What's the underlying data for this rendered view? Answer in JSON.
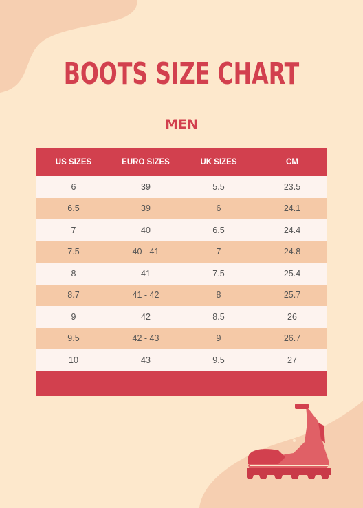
{
  "title": "BOOTS SIZE CHART",
  "subtitle": "MEN",
  "table": {
    "headers": [
      "US SIZES",
      "EURO SIZES",
      "UK SIZES",
      "CM"
    ],
    "rows": [
      [
        "6",
        "39",
        "5.5",
        "23.5"
      ],
      [
        "6.5",
        "39",
        "6",
        "24.1"
      ],
      [
        "7",
        "40",
        "6.5",
        "24.4"
      ],
      [
        "7.5",
        "40 - 41",
        "7",
        "24.8"
      ],
      [
        "8",
        "41",
        "7.5",
        "25.4"
      ],
      [
        "8.7",
        "41 - 42",
        "8",
        "25.7"
      ],
      [
        "9",
        "42",
        "8.5",
        "26"
      ],
      [
        "9.5",
        "42 - 43",
        "9",
        "26.7"
      ],
      [
        "10",
        "43",
        "9.5",
        "27"
      ]
    ]
  },
  "colors": {
    "background": "#fde8cc",
    "accent": "#d2404e",
    "blob": "#f6cfb1",
    "row_light": "#fdf3ef",
    "row_dark": "#f5c9a7"
  },
  "icons": [
    "boot-icon"
  ]
}
